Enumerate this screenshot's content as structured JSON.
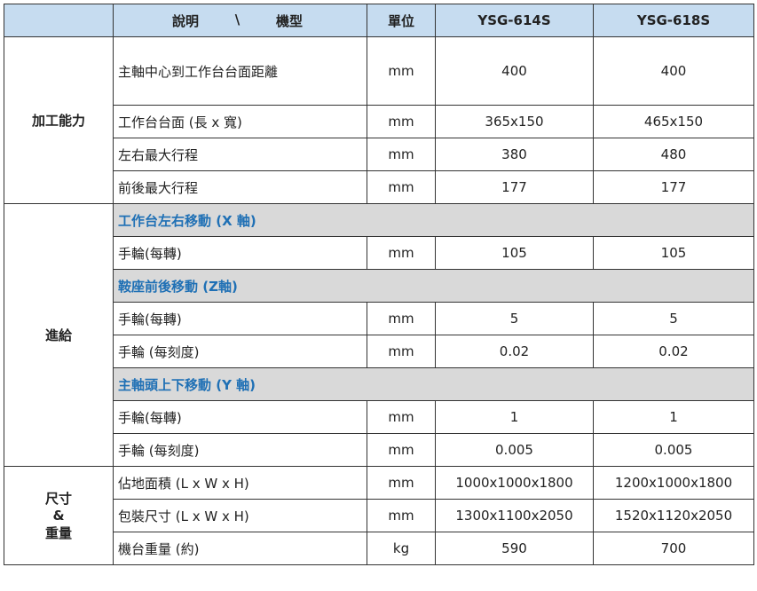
{
  "header": {
    "desc_left": "說明",
    "desc_sep": "\\",
    "desc_right": "機型",
    "unit": "單位",
    "model1": "YSG-614S",
    "model2": "YSG-618S"
  },
  "groups": [
    {
      "category": "加工能力",
      "rows": [
        {
          "label": "主軸中心到工作台台面距離",
          "unit": "mm",
          "v1": "400",
          "v2": "400",
          "tall": true
        },
        {
          "label": "工作台台面 (長 x 寬)",
          "unit": "mm",
          "v1": "365x150",
          "v2": "465x150"
        },
        {
          "label": "左右最大行程",
          "unit": "mm",
          "v1": "380",
          "v2": "480"
        },
        {
          "label": "前後最大行程",
          "unit": "mm",
          "v1": "177",
          "v2": "177"
        }
      ]
    },
    {
      "category": "進給",
      "rows": [
        {
          "section": "工作台左右移動 (X 軸)"
        },
        {
          "label": "手輪(每轉)",
          "unit": "mm",
          "v1": "105",
          "v2": "105"
        },
        {
          "section": "鞍座前後移動 (Z軸)"
        },
        {
          "label": "手輪(每轉)",
          "unit": "mm",
          "v1": "5",
          "v2": "5"
        },
        {
          "label": "手輪 (每刻度)",
          "unit": "mm",
          "v1": "0.02",
          "v2": "0.02"
        },
        {
          "section": "主軸頭上下移動 (Y 軸)"
        },
        {
          "label": "手輪(每轉)",
          "unit": "mm",
          "v1": "1",
          "v2": "1"
        },
        {
          "label": "手輪 (每刻度)",
          "unit": "mm",
          "v1": "0.005",
          "v2": "0.005"
        }
      ]
    },
    {
      "category": "尺寸\n&\n重量",
      "rows": [
        {
          "label": "佔地面積 (L x W x H)",
          "unit": "mm",
          "v1": "1000x1000x1800",
          "v2": "1200x1000x1800"
        },
        {
          "label": "包裝尺寸 (L x W x H)",
          "unit": "mm",
          "v1": "1300x1100x2050",
          "v2": "1520x1120x2050"
        },
        {
          "label": "機台重量 (約)",
          "unit": "kg",
          "v1": "590",
          "v2": "700"
        }
      ]
    }
  ],
  "colors": {
    "header_bg": "#c6dcf0",
    "section_bg": "#d9d9d9",
    "section_text": "#1f70b5"
  }
}
